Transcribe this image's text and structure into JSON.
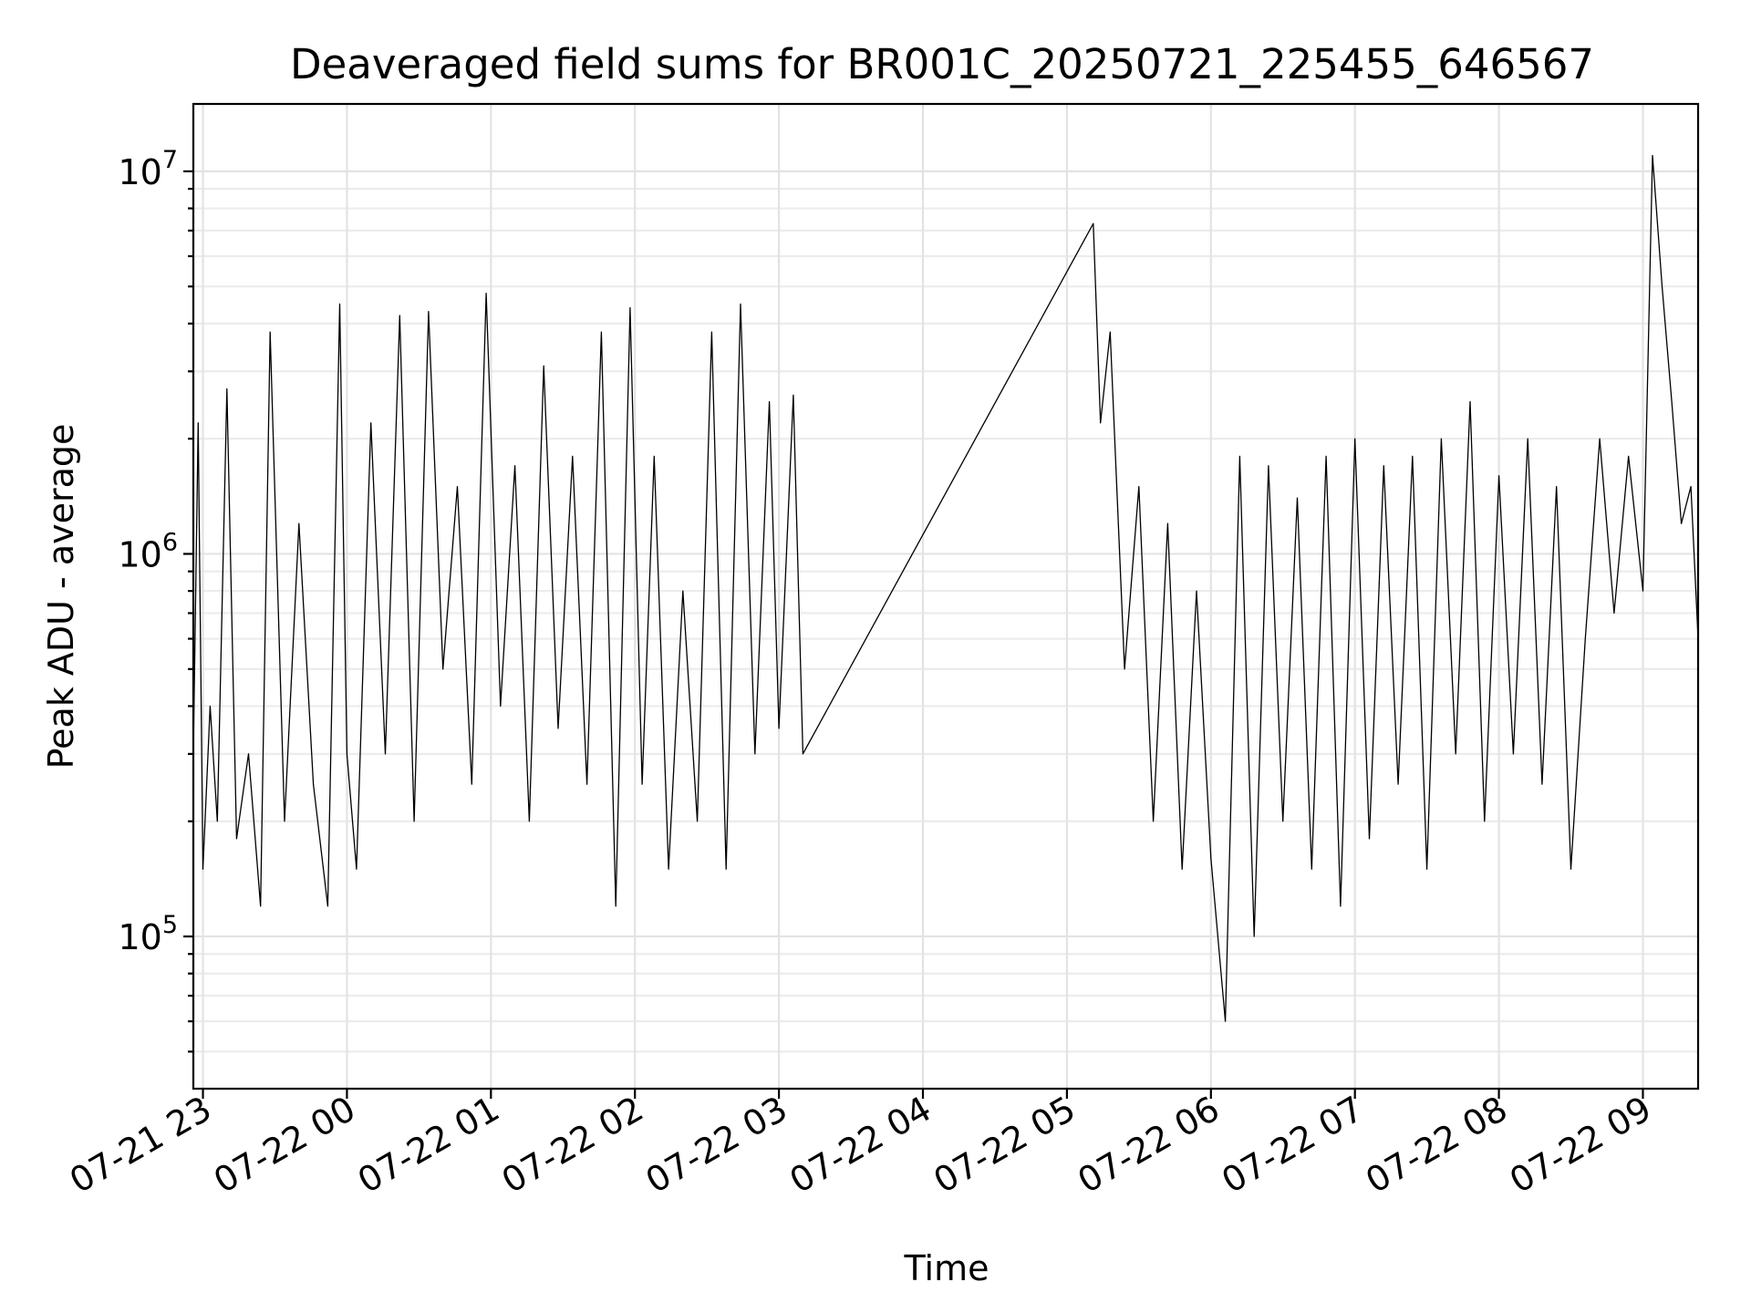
{
  "chart_data": {
    "type": "line",
    "title": "Deaveraged field sums for BR001C_20250721_225455_646567",
    "xlabel": "Time",
    "ylabel": "Peak ADU - average",
    "yscale": "log",
    "xlim": [
      "2025-07-21 22:56",
      "2025-07-22 09:23"
    ],
    "ylim": [
      40000,
      15000000
    ],
    "grid": "major and minor",
    "x_tick_labels": [
      "07-21 23",
      "07-22 00",
      "07-22 01",
      "07-22 02",
      "07-22 03",
      "07-22 04",
      "07-22 05",
      "07-22 06",
      "07-22 07",
      "07-22 08",
      "07-22 09"
    ],
    "x_ticks": [
      "2025-07-21 23:00",
      "2025-07-22 00:00",
      "2025-07-22 01:00",
      "2025-07-22 02:00",
      "2025-07-22 03:00",
      "2025-07-22 04:00",
      "2025-07-22 05:00",
      "2025-07-22 06:00",
      "2025-07-22 07:00",
      "2025-07-22 08:00",
      "2025-07-22 09:00"
    ],
    "y_ticks": [
      {
        "value": 100000,
        "base": "10",
        "exp": "5"
      },
      {
        "value": 1000000,
        "base": "10",
        "exp": "6"
      },
      {
        "value": 10000000,
        "base": "10",
        "exp": "7"
      }
    ],
    "series": [
      {
        "color": "#000000",
        "note_segments": "dense noisy record sampled at key values",
        "x": [
          "2025-07-21 22:56",
          "2025-07-21 22:58",
          "2025-07-21 23:00",
          "2025-07-21 23:03",
          "2025-07-21 23:06",
          "2025-07-21 23:10",
          "2025-07-21 23:14",
          "2025-07-21 23:19",
          "2025-07-21 23:24",
          "2025-07-21 23:28",
          "2025-07-21 23:34",
          "2025-07-21 23:40",
          "2025-07-21 23:46",
          "2025-07-21 23:52",
          "2025-07-21 23:57",
          "2025-07-22 00:00",
          "2025-07-22 00:04",
          "2025-07-22 00:10",
          "2025-07-22 00:16",
          "2025-07-22 00:22",
          "2025-07-22 00:28",
          "2025-07-22 00:34",
          "2025-07-22 00:40",
          "2025-07-22 00:46",
          "2025-07-22 00:52",
          "2025-07-22 00:58",
          "2025-07-22 01:04",
          "2025-07-22 01:10",
          "2025-07-22 01:16",
          "2025-07-22 01:22",
          "2025-07-22 01:28",
          "2025-07-22 01:34",
          "2025-07-22 01:40",
          "2025-07-22 01:46",
          "2025-07-22 01:52",
          "2025-07-22 01:58",
          "2025-07-22 02:03",
          "2025-07-22 02:08",
          "2025-07-22 02:14",
          "2025-07-22 02:20",
          "2025-07-22 02:26",
          "2025-07-22 02:32",
          "2025-07-22 02:38",
          "2025-07-22 02:44",
          "2025-07-22 02:50",
          "2025-07-22 02:56",
          "2025-07-22 03:00",
          "2025-07-22 03:06",
          "2025-07-22 03:10",
          "2025-07-22 05:11",
          "2025-07-22 05:14",
          "2025-07-22 05:18",
          "2025-07-22 05:24",
          "2025-07-22 05:30",
          "2025-07-22 05:36",
          "2025-07-22 05:42",
          "2025-07-22 05:48",
          "2025-07-22 05:54",
          "2025-07-22 06:00",
          "2025-07-22 06:06",
          "2025-07-22 06:12",
          "2025-07-22 06:18",
          "2025-07-22 06:24",
          "2025-07-22 06:30",
          "2025-07-22 06:36",
          "2025-07-22 06:42",
          "2025-07-22 06:48",
          "2025-07-22 06:54",
          "2025-07-22 07:00",
          "2025-07-22 07:06",
          "2025-07-22 07:12",
          "2025-07-22 07:18",
          "2025-07-22 07:24",
          "2025-07-22 07:30",
          "2025-07-22 07:36",
          "2025-07-22 07:42",
          "2025-07-22 07:48",
          "2025-07-22 07:54",
          "2025-07-22 08:00",
          "2025-07-22 08:06",
          "2025-07-22 08:12",
          "2025-07-22 08:18",
          "2025-07-22 08:24",
          "2025-07-22 08:30",
          "2025-07-22 08:36",
          "2025-07-22 08:42",
          "2025-07-22 08:48",
          "2025-07-22 08:54",
          "2025-07-22 09:00",
          "2025-07-22 09:04",
          "2025-07-22 09:08",
          "2025-07-22 09:12",
          "2025-07-22 09:16",
          "2025-07-22 09:20",
          "2025-07-22 09:23"
        ],
        "y": [
          300000,
          2200000,
          150000,
          400000,
          200000,
          2700000,
          180000,
          300000,
          120000,
          3800000,
          200000,
          1200000,
          250000,
          120000,
          4500000,
          300000,
          150000,
          2200000,
          300000,
          4200000,
          200000,
          4300000,
          500000,
          1500000,
          250000,
          4800000,
          400000,
          1700000,
          200000,
          3100000,
          350000,
          1800000,
          250000,
          3800000,
          120000,
          4400000,
          250000,
          1800000,
          150000,
          800000,
          200000,
          3800000,
          150000,
          4500000,
          300000,
          2500000,
          350000,
          2600000,
          300000,
          7300000,
          2200000,
          3800000,
          500000,
          1500000,
          200000,
          1200000,
          150000,
          800000,
          160000,
          60000,
          1800000,
          100000,
          1700000,
          200000,
          1400000,
          150000,
          1800000,
          120000,
          2000000,
          180000,
          1700000,
          250000,
          1800000,
          150000,
          2000000,
          300000,
          2500000,
          200000,
          1600000,
          300000,
          2000000,
          250000,
          1500000,
          150000,
          600000,
          2000000,
          700000,
          1800000,
          800000,
          11000000,
          5000000,
          2500000,
          1200000,
          1500000,
          600000
        ]
      }
    ]
  }
}
